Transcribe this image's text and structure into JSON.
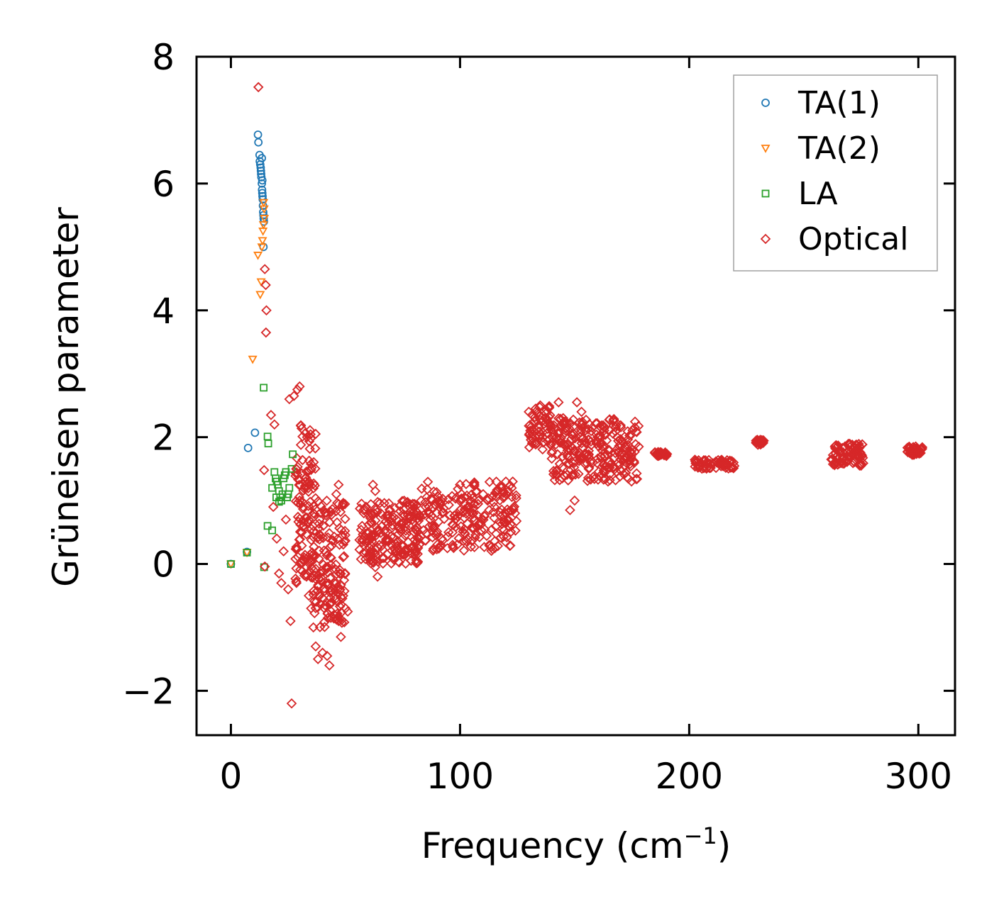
{
  "chart_data": {
    "type": "scatter",
    "xlabel": "Frequency (cm",
    "xlabel_sup": "−1",
    "xlabel_end": ")",
    "ylabel": "Grüneisen parameter",
    "xlim": [
      -15,
      316
    ],
    "ylim": [
      -2.7,
      8
    ],
    "xticks": [
      0,
      100,
      200,
      300
    ],
    "xtick_labels": [
      "0",
      "100",
      "200",
      "300"
    ],
    "yticks": [
      -2,
      0,
      2,
      4,
      6,
      8
    ],
    "ytick_labels": [
      "−2",
      "0",
      "2",
      "4",
      "6",
      "8"
    ],
    "legend_position": "top-right",
    "series": [
      {
        "name": "TA(1)",
        "marker": "circle",
        "color": "#1f77b4",
        "points": [
          [
            0,
            0
          ],
          [
            7,
            0.19
          ],
          [
            7.5,
            1.83
          ],
          [
            10.5,
            2.07
          ],
          [
            11.8,
            6.77
          ],
          [
            12,
            6.65
          ],
          [
            12.5,
            6.45
          ],
          [
            12.6,
            6.35
          ],
          [
            12.8,
            6.3
          ],
          [
            13,
            6.25
          ],
          [
            13.1,
            6.2
          ],
          [
            13.2,
            6.15
          ],
          [
            13.3,
            6.1
          ],
          [
            13.5,
            6.0
          ],
          [
            13.6,
            5.9
          ],
          [
            13.7,
            5.85
          ],
          [
            13.8,
            5.8
          ],
          [
            13.9,
            5.75
          ],
          [
            14,
            5.65
          ],
          [
            14.1,
            5.55
          ],
          [
            14.2,
            5.5
          ],
          [
            14.3,
            5.45
          ],
          [
            14.4,
            5.4
          ],
          [
            14.2,
            5.0
          ],
          [
            13.5,
            6.4
          ],
          [
            13.7,
            6.05
          ]
        ]
      },
      {
        "name": "TA(2)",
        "marker": "triangle-down",
        "color": "#ff7f0e",
        "points": [
          [
            0,
            0
          ],
          [
            7,
            0.18
          ],
          [
            9.5,
            3.23
          ],
          [
            11.8,
            4.87
          ],
          [
            12.8,
            4.25
          ],
          [
            13.2,
            4.45
          ],
          [
            13.5,
            5.0
          ],
          [
            13.8,
            5.1
          ],
          [
            14,
            5.25
          ],
          [
            14.2,
            5.35
          ],
          [
            14.5,
            5.6
          ],
          [
            14.3,
            5.7
          ],
          [
            14.6,
            5.45
          ]
        ]
      },
      {
        "name": "LA",
        "marker": "square",
        "color": "#2ca02c",
        "points": [
          [
            0,
            0
          ],
          [
            7,
            0.18
          ],
          [
            14.5,
            -0.05
          ],
          [
            14.3,
            2.78
          ],
          [
            16,
            2.01
          ],
          [
            16.3,
            1.9
          ],
          [
            16,
            0.6
          ],
          [
            18,
            0.53
          ],
          [
            18,
            1.2
          ],
          [
            19,
            1.45
          ],
          [
            19.5,
            1.35
          ],
          [
            20,
            1.3
          ],
          [
            20.5,
            1.25
          ],
          [
            21,
            1.15
          ],
          [
            21.5,
            1.05
          ],
          [
            22,
            1.0
          ],
          [
            22.5,
            1.1
          ],
          [
            23,
            1.35
          ],
          [
            23.5,
            1.4
          ],
          [
            24,
            1.45
          ],
          [
            24.5,
            1.05
          ],
          [
            25,
            1.1
          ],
          [
            25.5,
            1.2
          ],
          [
            26.5,
            1.5
          ],
          [
            27,
            1.73
          ],
          [
            21,
            0.98
          ],
          [
            19.8,
            1.05
          ]
        ]
      },
      {
        "name": "Optical",
        "marker": "diamond",
        "color": "#d62728",
        "points": [
          [
            12,
            7.52
          ],
          [
            14.8,
            4.65
          ],
          [
            15.2,
            4.4
          ],
          [
            15.5,
            4.0
          ],
          [
            15.3,
            3.65
          ],
          [
            14.5,
            1.48
          ],
          [
            14.8,
            -0.04
          ],
          [
            17.5,
            2.35
          ],
          [
            19,
            2.2
          ],
          [
            18.5,
            0.9
          ],
          [
            20,
            0.4
          ],
          [
            21,
            -0.15
          ],
          [
            22,
            -0.3
          ],
          [
            23,
            0.2
          ],
          [
            24,
            0.7
          ],
          [
            25,
            -0.4
          ],
          [
            26,
            -0.9
          ],
          [
            26.5,
            -2.2
          ],
          [
            25.5,
            2.6
          ],
          [
            27.5,
            2.65
          ],
          [
            29,
            2.75
          ],
          [
            30,
            2.8
          ],
          [
            28.5,
            1.5
          ],
          [
            30,
            1.0
          ],
          [
            31,
            0.5
          ],
          [
            32,
            0.1
          ],
          [
            33,
            -0.2
          ],
          [
            34,
            -0.5
          ],
          [
            35,
            -0.7
          ],
          [
            36,
            -1.0
          ],
          [
            37,
            -1.3
          ],
          [
            38,
            -1.5
          ],
          [
            40,
            -1.4
          ],
          [
            42,
            -1.45
          ],
          [
            43,
            -1.6
          ],
          [
            44,
            -0.6
          ],
          [
            45,
            -0.8
          ],
          [
            46,
            -0.3
          ],
          [
            47,
            -0.9
          ],
          [
            48,
            -1.15
          ],
          [
            49,
            -0.5
          ],
          [
            50,
            -0.7
          ],
          [
            51,
            -0.75
          ],
          [
            46,
            1.1
          ],
          [
            47,
            1.25
          ],
          [
            57,
            0.95
          ],
          [
            58,
            0.8
          ],
          [
            60,
            0.5
          ],
          [
            61,
            0.3
          ],
          [
            62,
            0.1
          ],
          [
            63,
            -0.05
          ],
          [
            64,
            -0.2
          ],
          [
            62,
            1.25
          ],
          [
            63,
            1.15
          ],
          [
            66,
            0.6
          ],
          [
            68,
            0.4
          ],
          [
            70,
            0.3
          ],
          [
            72,
            0.2
          ],
          [
            74,
            0.55
          ],
          [
            76,
            0.45
          ],
          [
            80,
            0.5
          ],
          [
            83,
            1.0
          ],
          [
            85,
            0.9
          ],
          [
            87,
            0.7
          ],
          [
            89,
            0.6
          ],
          [
            92,
            0.4
          ],
          [
            95,
            0.5
          ],
          [
            98,
            0.7
          ],
          [
            100,
            0.85
          ],
          [
            104,
            0.9
          ],
          [
            108,
            1.0
          ],
          [
            112,
            1.0
          ],
          [
            115,
            0.9
          ],
          [
            118,
            1.2
          ],
          [
            120,
            1.3
          ],
          [
            123,
            1.3
          ],
          [
            124,
            0.8
          ],
          [
            130,
            2.4
          ],
          [
            133,
            2.45
          ],
          [
            135,
            2.5
          ],
          [
            137,
            2.3
          ],
          [
            140,
            1.75
          ],
          [
            143,
            2.55
          ],
          [
            145,
            2.3
          ],
          [
            147,
            1.9
          ],
          [
            148,
            0.85
          ],
          [
            150,
            1.0
          ],
          [
            151,
            2.55
          ],
          [
            153,
            2.4
          ],
          [
            155,
            1.9
          ],
          [
            158,
            1.6
          ],
          [
            160,
            2.0
          ],
          [
            163,
            1.7
          ],
          [
            165,
            1.8
          ],
          [
            167,
            2.18
          ],
          [
            170,
            1.65
          ],
          [
            172,
            1.55
          ],
          [
            175,
            1.8
          ],
          [
            178,
            1.85
          ],
          [
            185,
            1.75
          ],
          [
            188,
            1.75
          ],
          [
            190,
            1.72
          ],
          [
            203,
            1.6
          ],
          [
            205,
            1.6
          ],
          [
            208,
            1.58
          ],
          [
            212,
            1.6
          ],
          [
            215,
            1.55
          ],
          [
            218,
            1.52
          ],
          [
            230,
            1.95
          ],
          [
            231,
            1.9
          ],
          [
            232,
            1.92
          ],
          [
            262,
            1.65
          ],
          [
            264,
            1.6
          ],
          [
            266,
            1.75
          ],
          [
            268,
            1.85
          ],
          [
            270,
            1.88
          ],
          [
            272,
            1.85
          ],
          [
            274,
            1.82
          ],
          [
            296,
            1.85
          ],
          [
            298,
            1.8
          ],
          [
            300,
            1.77
          ],
          [
            301,
            1.75
          ]
        ]
      }
    ],
    "bands": [
      {
        "series": "Optical",
        "x_range": [
          28,
          37
        ],
        "y_range": [
          -0.3,
          2.2
        ],
        "n": 120,
        "seed": 11
      },
      {
        "series": "Optical",
        "x_range": [
          36,
          50
        ],
        "y_range": [
          -1.0,
          1.0
        ],
        "n": 150,
        "seed": 12
      },
      {
        "series": "Optical",
        "x_range": [
          56,
          82
        ],
        "y_range": [
          0.0,
          1.0
        ],
        "n": 200,
        "seed": 13
      },
      {
        "series": "Optical",
        "x_range": [
          82,
          125
        ],
        "y_range": [
          0.2,
          1.3
        ],
        "n": 220,
        "seed": 14
      },
      {
        "series": "Optical",
        "x_range": [
          130,
          140
        ],
        "y_range": [
          1.8,
          2.5
        ],
        "n": 60,
        "seed": 15
      },
      {
        "series": "Optical",
        "x_range": [
          140,
          178
        ],
        "y_range": [
          1.3,
          2.3
        ],
        "n": 260,
        "seed": 16
      },
      {
        "series": "Optical",
        "x_range": [
          185,
          191
        ],
        "y_range": [
          1.7,
          1.78
        ],
        "n": 30,
        "seed": 17
      },
      {
        "series": "Optical",
        "x_range": [
          202,
          220
        ],
        "y_range": [
          1.5,
          1.65
        ],
        "n": 60,
        "seed": 18
      },
      {
        "series": "Optical",
        "x_range": [
          229,
          233
        ],
        "y_range": [
          1.88,
          1.96
        ],
        "n": 20,
        "seed": 19
      },
      {
        "series": "Optical",
        "x_range": [
          262,
          276
        ],
        "y_range": [
          1.55,
          1.9
        ],
        "n": 80,
        "seed": 20
      },
      {
        "series": "Optical",
        "x_range": [
          295,
          302
        ],
        "y_range": [
          1.72,
          1.86
        ],
        "n": 40,
        "seed": 21
      }
    ]
  }
}
